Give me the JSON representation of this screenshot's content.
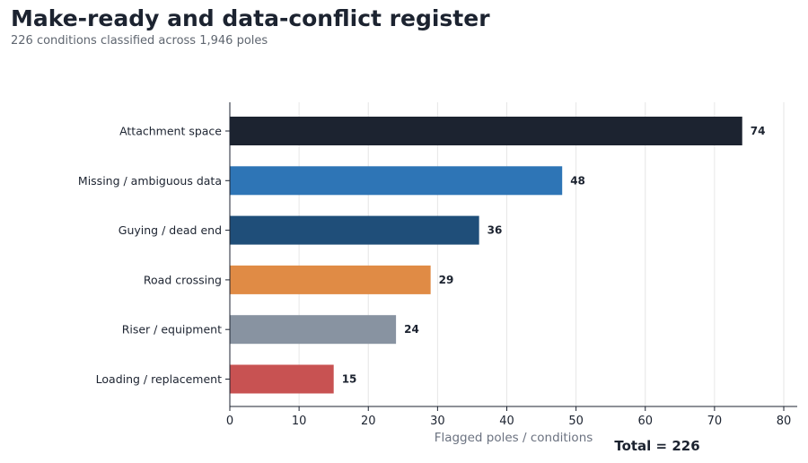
{
  "title": "Make-ready and data-conflict register",
  "subtitle": "226 conditions classified across 1,946 poles",
  "chart_data": {
    "type": "bar",
    "orientation": "horizontal",
    "title": "Make-ready and data-conflict register",
    "subtitle": "226 conditions classified across 1,946 poles",
    "xlabel": "Flagged poles / conditions",
    "ylabel": "",
    "categories": [
      "Attachment space",
      "Missing / ambiguous data",
      "Guying / dead end",
      "Road crossing",
      "Riser / equipment",
      "Loading / replacement"
    ],
    "values": [
      74,
      48,
      36,
      29,
      24,
      15
    ],
    "colors": [
      "#1c2330",
      "#2e75b6",
      "#1f4e79",
      "#e08b45",
      "#8893a1",
      "#c85252"
    ],
    "xlim": [
      0,
      80
    ],
    "xticks": [
      0,
      10,
      20,
      30,
      40,
      50,
      60,
      70,
      80
    ],
    "grid": "vertical",
    "data_labels": true,
    "annotation": "Total = 226"
  }
}
